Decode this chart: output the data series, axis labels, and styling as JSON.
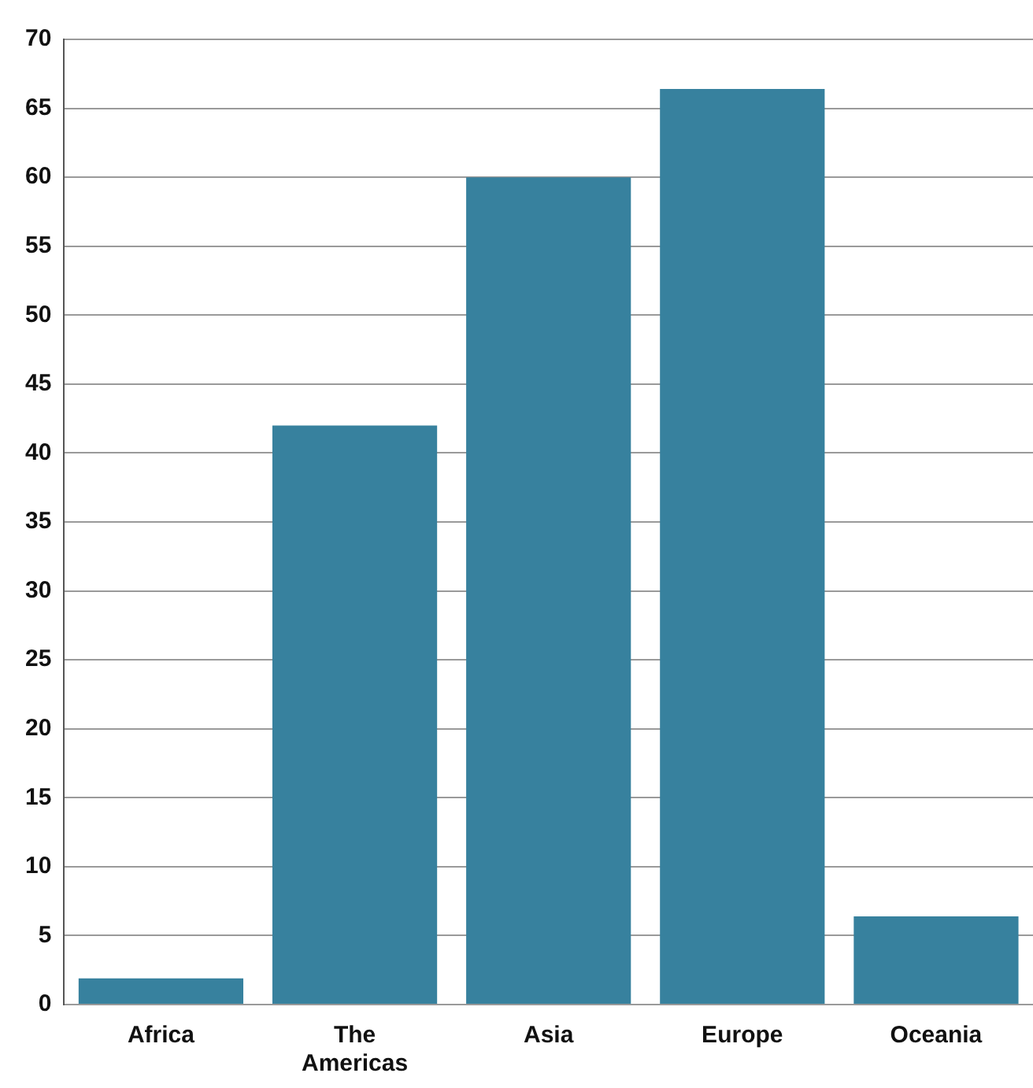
{
  "chart_data": {
    "type": "bar",
    "categories": [
      "Africa",
      "The Americas",
      "Asia",
      "Europe",
      "Oceania"
    ],
    "values": [
      1.9,
      42,
      60,
      66.4,
      6.4
    ],
    "color": "#37819e",
    "ylim": [
      0,
      70
    ],
    "yticks": [
      0,
      5,
      10,
      15,
      20,
      25,
      30,
      35,
      40,
      45,
      50,
      55,
      60,
      65,
      70
    ],
    "grid": "y",
    "legend": false
  }
}
